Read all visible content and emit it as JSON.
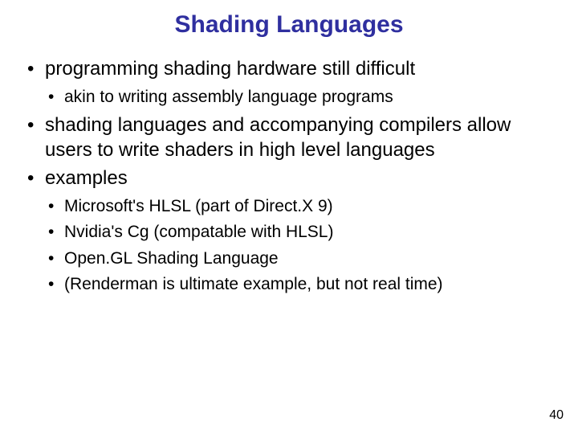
{
  "title": "Shading Languages",
  "title_color": "#2f2f9f",
  "title_fontsize": 30,
  "text_color": "#000000",
  "lvl1_fontsize": 24,
  "lvl2_fontsize": 21,
  "bullets": [
    {
      "text": "programming shading hardware still difficult",
      "children": [
        {
          "text": "akin to writing assembly language programs"
        }
      ]
    },
    {
      "text": "shading languages and accompanying compilers allow users to write shaders in high level languages",
      "children": []
    },
    {
      "text": "examples",
      "children": [
        {
          "text": "Microsoft's HLSL (part of Direct.X 9)"
        },
        {
          "text": "Nvidia's Cg (compatable with HLSL)"
        },
        {
          "text": "Open.GL Shading Language"
        },
        {
          "text": "(Renderman is ultimate example, but not real time)"
        }
      ]
    }
  ],
  "page_number": "40",
  "page_number_fontsize": 16,
  "background_color": "#ffffff"
}
